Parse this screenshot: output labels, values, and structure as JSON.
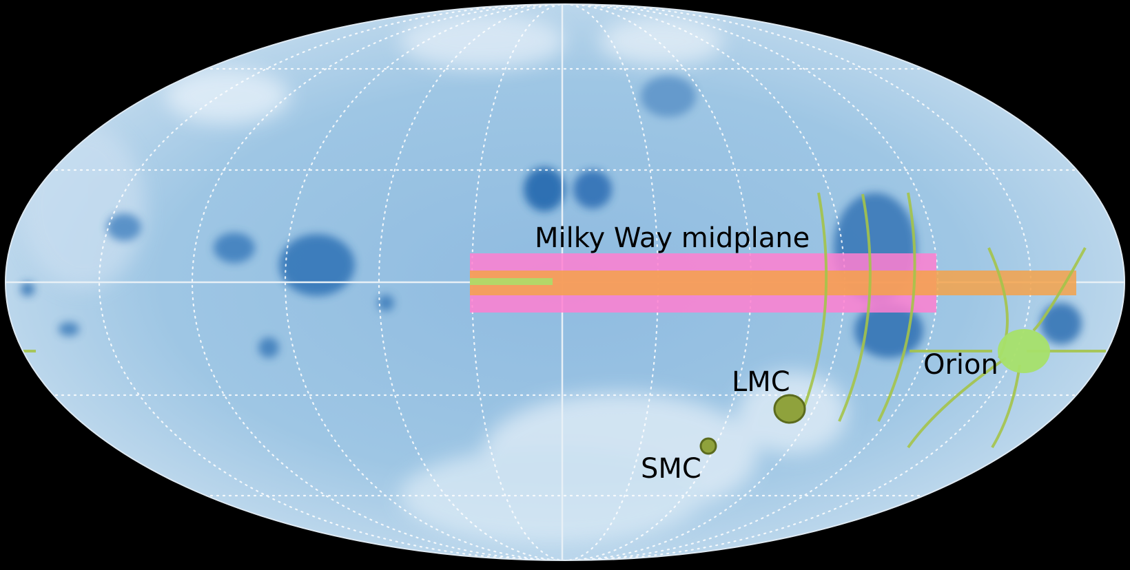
{
  "map": {
    "projection": "mollweide",
    "background_color": "#000000",
    "base_color_light": "#d6e8f4",
    "base_color_mid": "#9cc4e2",
    "base_color_dark": "#1a5fa8",
    "grid_color": "#ffffff",
    "grid_style": "dotted",
    "axis_lines": true
  },
  "overlays": {
    "band_wide_color": "#ff7fd0",
    "band_inner_color": "#f4a24a",
    "core_color": "#a7e06a",
    "shell_color": "#a5c44a"
  },
  "labels": {
    "milky_way": "Milky Way midplane",
    "lmc": "LMC",
    "smc": "SMC",
    "orion": "Orion"
  }
}
